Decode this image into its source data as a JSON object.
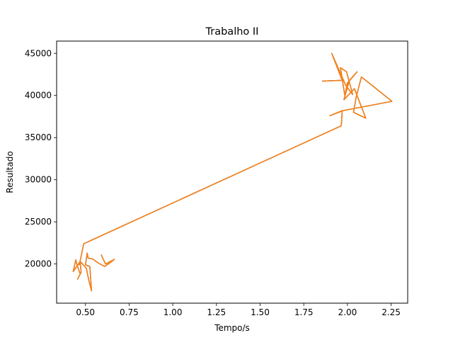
{
  "chart_data": {
    "type": "line",
    "title": "Trabalho II",
    "xlabel": "Tempo/s",
    "ylabel": "Resultado",
    "xlim": [
      0.335,
      2.345
    ],
    "ylim": [
      15350,
      46450
    ],
    "xticks": [
      0.5,
      0.75,
      1.0,
      1.25,
      1.5,
      1.75,
      2.0,
      2.25
    ],
    "xtick_labels": [
      "0.50",
      "0.75",
      "1.00",
      "1.25",
      "1.50",
      "1.75",
      "2.00",
      "2.25"
    ],
    "yticks": [
      20000,
      25000,
      30000,
      35000,
      40000,
      45000
    ],
    "ytick_labels": [
      "20000",
      "25000",
      "30000",
      "35000",
      "40000",
      "45000"
    ],
    "grid": false,
    "series": [
      {
        "color": "#1f77b4",
        "x": [
          0.59,
          0.615,
          0.665,
          0.645,
          0.61,
          0.575,
          0.54,
          0.515,
          0.51,
          0.5,
          0.525,
          0.535,
          0.52,
          0.505,
          0.47,
          0.475,
          0.455,
          0.47,
          0.45,
          0.445,
          0.43,
          0.47,
          0.465,
          0.49,
          1.965,
          1.97,
          1.9,
          1.975,
          2.255,
          2.08,
          2.05,
          2.035,
          2.105,
          2.04,
          1.98,
          2.01,
          2.055,
          2.0,
          1.985,
          1.96,
          1.995,
          2.03,
          1.99,
          1.91,
          1.97,
          1.855
        ],
        "y": [
          21100,
          20000,
          20550,
          20200,
          19700,
          20100,
          20600,
          20700,
          21300,
          19900,
          19700,
          16800,
          18000,
          19500,
          20300,
          19000,
          18200,
          18800,
          20000,
          20500,
          19100,
          20300,
          19900,
          22400,
          36400,
          38200,
          37600,
          38200,
          39300,
          42200,
          39800,
          38000,
          37300,
          40800,
          39500,
          41700,
          42800,
          41500,
          40000,
          43300,
          42800,
          40100,
          41200,
          45000,
          41800,
          41700
        ]
      },
      {
        "color": "#ff7f0e",
        "x": [
          0.59,
          0.615,
          0.665,
          0.645,
          0.61,
          0.575,
          0.54,
          0.515,
          0.51,
          0.5,
          0.525,
          0.535,
          0.52,
          0.505,
          0.47,
          0.475,
          0.455,
          0.47,
          0.45,
          0.445,
          0.43,
          0.47,
          0.465,
          0.49,
          1.965,
          1.97,
          1.9,
          1.975,
          2.255,
          2.08,
          2.05,
          2.035,
          2.105,
          2.04,
          1.98,
          2.01,
          2.055,
          2.0,
          1.985,
          1.96,
          1.995,
          2.03,
          1.99,
          1.91,
          1.97,
          1.855
        ],
        "y": [
          21100,
          20000,
          20550,
          20200,
          19700,
          20100,
          20600,
          20700,
          21300,
          19900,
          19700,
          16800,
          18000,
          19500,
          20300,
          19000,
          18200,
          18800,
          20000,
          20500,
          19100,
          20300,
          19900,
          22400,
          36400,
          38200,
          37600,
          38200,
          39300,
          42200,
          39800,
          38000,
          37300,
          40800,
          39500,
          41700,
          42800,
          41500,
          40000,
          43300,
          42800,
          40100,
          41200,
          45000,
          41800,
          41700
        ]
      }
    ]
  }
}
